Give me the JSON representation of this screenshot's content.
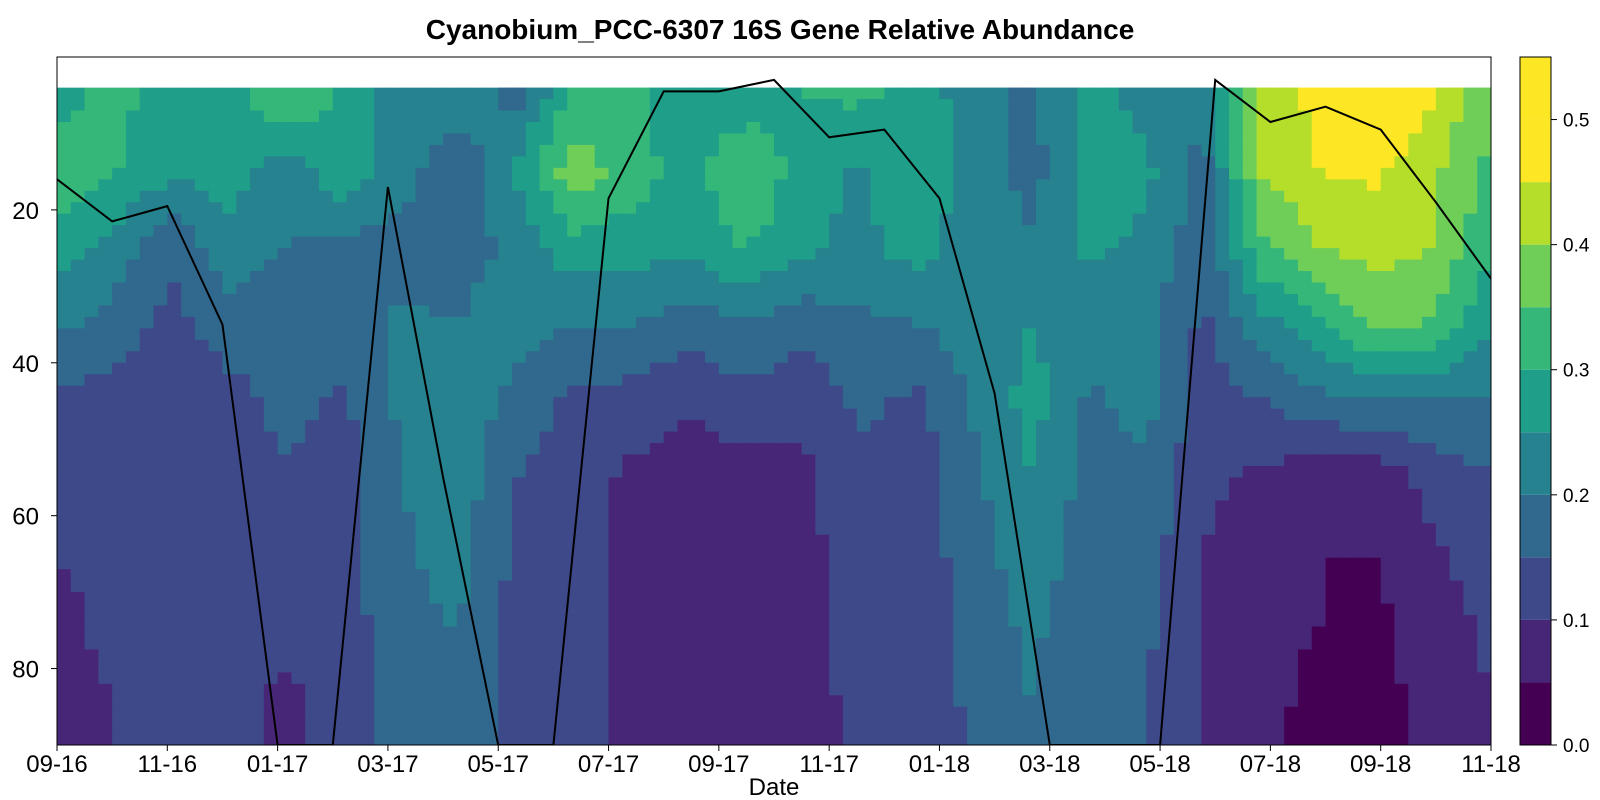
{
  "chart_data": {
    "type": "heatmap",
    "subtype": "filled contour",
    "title": "Cyanobium_PCC-6307 16S Gene Relative Abundance",
    "xlabel": "Date",
    "ylabel": "",
    "x_ticks": [
      "09-16",
      "11-16",
      "01-17",
      "03-17",
      "05-17",
      "07-17",
      "09-17",
      "11-17",
      "01-18",
      "03-18",
      "05-18",
      "07-18",
      "09-18",
      "11-18"
    ],
    "y_ticks": [
      20,
      40,
      60,
      80
    ],
    "y_range": [
      0,
      90
    ],
    "y_inverted": true,
    "colorbar": {
      "ticks": [
        0.0,
        0.1,
        0.2,
        0.3,
        0.4,
        0.5
      ],
      "levels": [
        0.0,
        0.05,
        0.1,
        0.15,
        0.2,
        0.25,
        0.3,
        0.35,
        0.4,
        0.45,
        0.5,
        0.55
      ],
      "colors": [
        "#440154",
        "#482677",
        "#3e4989",
        "#31688e",
        "#26828e",
        "#1f9e89",
        "#35b779",
        "#6ece58",
        "#b5de2b",
        "#fde725",
        "#fde725"
      ]
    },
    "grid": [
      [
        0.27,
        0.33,
        0.25,
        0.27,
        0.35,
        0.29,
        0.21,
        0.24,
        0.18,
        0.31,
        0.31,
        0.27,
        0.26,
        0.3,
        0.31,
        0.28,
        0.22,
        0.19,
        0.27,
        0.23,
        0.21,
        0.4,
        0.47,
        0.5,
        0.46,
        0.34
      ],
      [
        0.34,
        0.3,
        0.26,
        0.27,
        0.22,
        0.29,
        0.23,
        0.15,
        0.26,
        0.38,
        0.33,
        0.27,
        0.36,
        0.27,
        0.24,
        0.28,
        0.24,
        0.18,
        0.27,
        0.26,
        0.18,
        0.4,
        0.45,
        0.46,
        0.41,
        0.34
      ],
      [
        0.28,
        0.23,
        0.16,
        0.23,
        0.2,
        0.18,
        0.17,
        0.18,
        0.21,
        0.28,
        0.27,
        0.26,
        0.3,
        0.26,
        0.24,
        0.27,
        0.21,
        0.21,
        0.26,
        0.24,
        0.16,
        0.34,
        0.4,
        0.42,
        0.4,
        0.3
      ],
      [
        0.21,
        0.18,
        0.13,
        0.18,
        0.15,
        0.18,
        0.21,
        0.2,
        0.23,
        0.2,
        0.2,
        0.17,
        0.2,
        0.17,
        0.19,
        0.2,
        0.22,
        0.25,
        0.22,
        0.21,
        0.14,
        0.23,
        0.29,
        0.37,
        0.34,
        0.26
      ],
      [
        0.14,
        0.13,
        0.1,
        0.13,
        0.17,
        0.14,
        0.21,
        0.24,
        0.18,
        0.14,
        0.13,
        0.11,
        0.13,
        0.11,
        0.16,
        0.14,
        0.21,
        0.27,
        0.19,
        0.22,
        0.12,
        0.15,
        0.18,
        0.2,
        0.2,
        0.19
      ],
      [
        0.1,
        0.11,
        0.1,
        0.11,
        0.14,
        0.13,
        0.2,
        0.23,
        0.15,
        0.13,
        0.09,
        0.07,
        0.08,
        0.09,
        0.14,
        0.12,
        0.19,
        0.25,
        0.18,
        0.19,
        0.11,
        0.09,
        0.07,
        0.07,
        0.12,
        0.15
      ],
      [
        0.1,
        0.11,
        0.1,
        0.11,
        0.13,
        0.13,
        0.19,
        0.22,
        0.14,
        0.13,
        0.07,
        0.05,
        0.06,
        0.08,
        0.13,
        0.12,
        0.18,
        0.23,
        0.17,
        0.17,
        0.1,
        0.07,
        0.05,
        0.05,
        0.09,
        0.13
      ],
      [
        0.09,
        0.11,
        0.1,
        0.11,
        0.11,
        0.12,
        0.19,
        0.2,
        0.13,
        0.13,
        0.07,
        0.05,
        0.05,
        0.08,
        0.12,
        0.12,
        0.17,
        0.21,
        0.16,
        0.16,
        0.09,
        0.06,
        0.05,
        0.04,
        0.07,
        0.11
      ],
      [
        0.08,
        0.1,
        0.1,
        0.11,
        0.09,
        0.12,
        0.18,
        0.19,
        0.13,
        0.13,
        0.07,
        0.05,
        0.05,
        0.07,
        0.12,
        0.12,
        0.16,
        0.2,
        0.16,
        0.15,
        0.09,
        0.06,
        0.04,
        0.04,
        0.06,
        0.1
      ],
      [
        0.08,
        0.1,
        0.1,
        0.11,
        0.09,
        0.12,
        0.18,
        0.19,
        0.13,
        0.13,
        0.07,
        0.05,
        0.05,
        0.07,
        0.12,
        0.12,
        0.16,
        0.19,
        0.16,
        0.15,
        0.09,
        0.06,
        0.04,
        0.04,
        0.06,
        0.1
      ]
    ],
    "grid_depths": [
      5,
      15,
      25,
      35,
      45,
      55,
      65,
      75,
      85,
      90
    ],
    "line": {
      "x_month": [
        0,
        1,
        2,
        3,
        4,
        5,
        6,
        7,
        8,
        9,
        10,
        11,
        12,
        13,
        14,
        15,
        16,
        17,
        18,
        19,
        20,
        21,
        22,
        23,
        24,
        25,
        26
      ],
      "depth": [
        16,
        21.5,
        19.5,
        35,
        90,
        90,
        17,
        55,
        90,
        90,
        18.5,
        4.5,
        4.5,
        3,
        10.5,
        9.5,
        18.5,
        44,
        90,
        90,
        90,
        3,
        8.5,
        6.5,
        9.5,
        19,
        29
      ]
    }
  }
}
